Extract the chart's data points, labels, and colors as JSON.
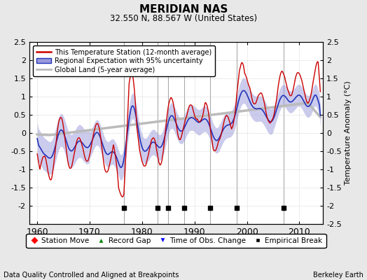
{
  "title": "MERIDIAN NAS",
  "subtitle": "32.550 N, 88.567 W (United States)",
  "ylabel_right": "Temperature Anomaly (°C)",
  "xlabel_bottom": "Data Quality Controlled and Aligned at Breakpoints",
  "credit": "Berkeley Earth",
  "xlim": [
    1958.5,
    2014.5
  ],
  "ylim": [
    -2.5,
    2.5
  ],
  "yticks": [
    -2.5,
    -2,
    -1.5,
    -1,
    -0.5,
    0,
    0.5,
    1,
    1.5,
    2,
    2.5
  ],
  "ytick_labels_left": [
    "",
    "-2",
    "-1.5",
    "-1",
    "-0.5",
    "0",
    "0.5",
    "1",
    "1.5",
    "2",
    "2.5"
  ],
  "ytick_labels_right": [
    "-2.5",
    "-2",
    "-1.5",
    "-1",
    "-0.5",
    "0",
    "0.5",
    "1",
    "1.5",
    "2",
    "2.5"
  ],
  "xticks": [
    1960,
    1970,
    1980,
    1990,
    2000,
    2010
  ],
  "background_color": "#e8e8e8",
  "plot_bg_color": "#ffffff",
  "red_line_color": "#cc0000",
  "blue_line_color": "#2233bb",
  "blue_fill_color": "#9999dd",
  "gray_line_color": "#bbbbbb",
  "empirical_break_years": [
    1976.5,
    1983,
    1985,
    1988,
    1993,
    1998,
    2007
  ],
  "vertical_line_color": "#aaaaaa",
  "seed": 123
}
